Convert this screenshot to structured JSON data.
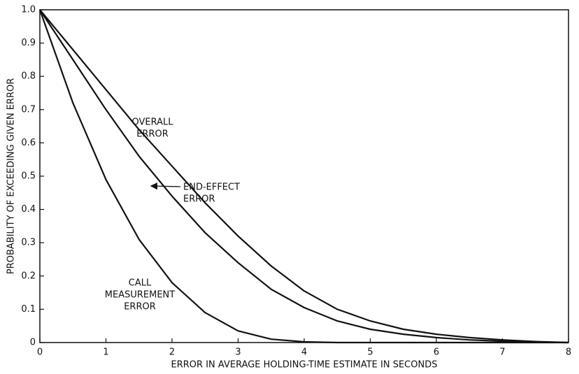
{
  "chart_data": {
    "type": "line",
    "x_label": "ERROR IN AVERAGE HOLDING-TIME ESTIMATE IN SECONDS",
    "y_label": "PROBABILITY OF EXCEEDING GIVEN ERROR",
    "x": [
      0,
      0.5,
      1,
      1.5,
      2,
      2.5,
      3,
      3.5,
      4,
      4.5,
      5,
      5.5,
      6,
      6.5,
      7,
      7.5,
      8
    ],
    "series": [
      {
        "color": "#111111",
        "values": [
          1,
          0.88,
          0.76,
          0.64,
          0.53,
          0.42,
          0.32,
          0.23,
          0.155,
          0.1,
          0.065,
          0.04,
          0.025,
          0.015,
          0.008,
          0.003,
          0
        ]
      },
      {
        "color": "#111111",
        "values": [
          1,
          0.85,
          0.7,
          0.56,
          0.44,
          0.33,
          0.24,
          0.16,
          0.105,
          0.065,
          0.04,
          0.025,
          0.015,
          0.008,
          0.004,
          0.001,
          0
        ]
      },
      {
        "color": "#111111",
        "values": [
          1,
          0.72,
          0.49,
          0.31,
          0.18,
          0.09,
          0.035,
          0.01,
          0.002,
          0,
          0,
          0,
          0,
          0,
          0,
          0,
          0
        ]
      }
    ],
    "annotations": [
      {
        "lines": [
          "OVERALL",
          "ERROR"
        ]
      },
      {
        "lines": [
          "END-EFFECT",
          "ERROR"
        ]
      },
      {
        "lines": [
          "CALL",
          "MEASUREMENT",
          "ERROR"
        ]
      }
    ],
    "xlim": [
      0,
      8
    ],
    "ylim": [
      0,
      1
    ],
    "xticks": [
      0,
      1,
      2,
      3,
      4,
      5,
      6,
      7,
      8
    ],
    "yticks": [
      0,
      0.1,
      0.2,
      0.3,
      0.4,
      0.5,
      0.6,
      0.7,
      0.8,
      0.9,
      {
        "value": 1,
        "label": "1.0"
      }
    ]
  }
}
